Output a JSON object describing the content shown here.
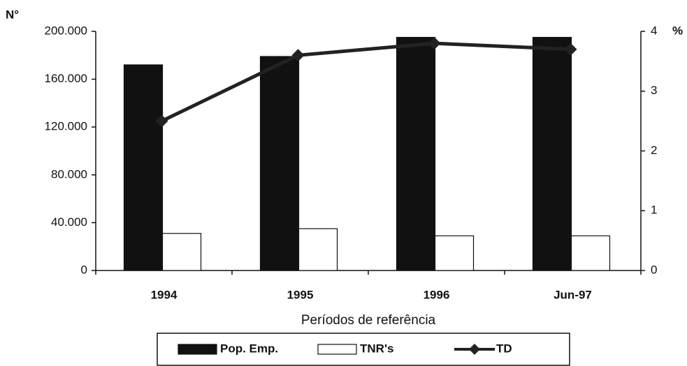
{
  "chart_data": {
    "type": "bar",
    "y_label": "N°",
    "y2_label": "%",
    "x_label": "Períodos de referência",
    "categories": [
      "1994",
      "1995",
      "1996",
      "Jun-97"
    ],
    "series": [
      {
        "name": "Pop. Emp.",
        "type": "bar",
        "color": "#111111",
        "values": [
          172000,
          179000,
          195000,
          195000
        ]
      },
      {
        "name": "TNR's",
        "type": "bar",
        "color": "#ffffff",
        "values": [
          31000,
          35000,
          29000,
          29000
        ]
      },
      {
        "name": "TD",
        "type": "line",
        "axis": "y2",
        "color": "#222222",
        "values": [
          2.5,
          3.6,
          3.8,
          3.7
        ]
      }
    ],
    "ylim": [
      0,
      200000
    ],
    "yticks": [
      0,
      {
        "value": 40000,
        "label": "40.000"
      },
      {
        "value": 80000,
        "label": "80.000"
      },
      {
        "value": 120000,
        "label": "120.000"
      },
      {
        "value": 160000,
        "label": "160.000"
      },
      {
        "value": 200000,
        "label": "200.000"
      }
    ],
    "y2lim": [
      0,
      4
    ],
    "y2ticks": [
      0,
      1,
      2,
      3,
      4
    ],
    "legend": "bottom"
  }
}
